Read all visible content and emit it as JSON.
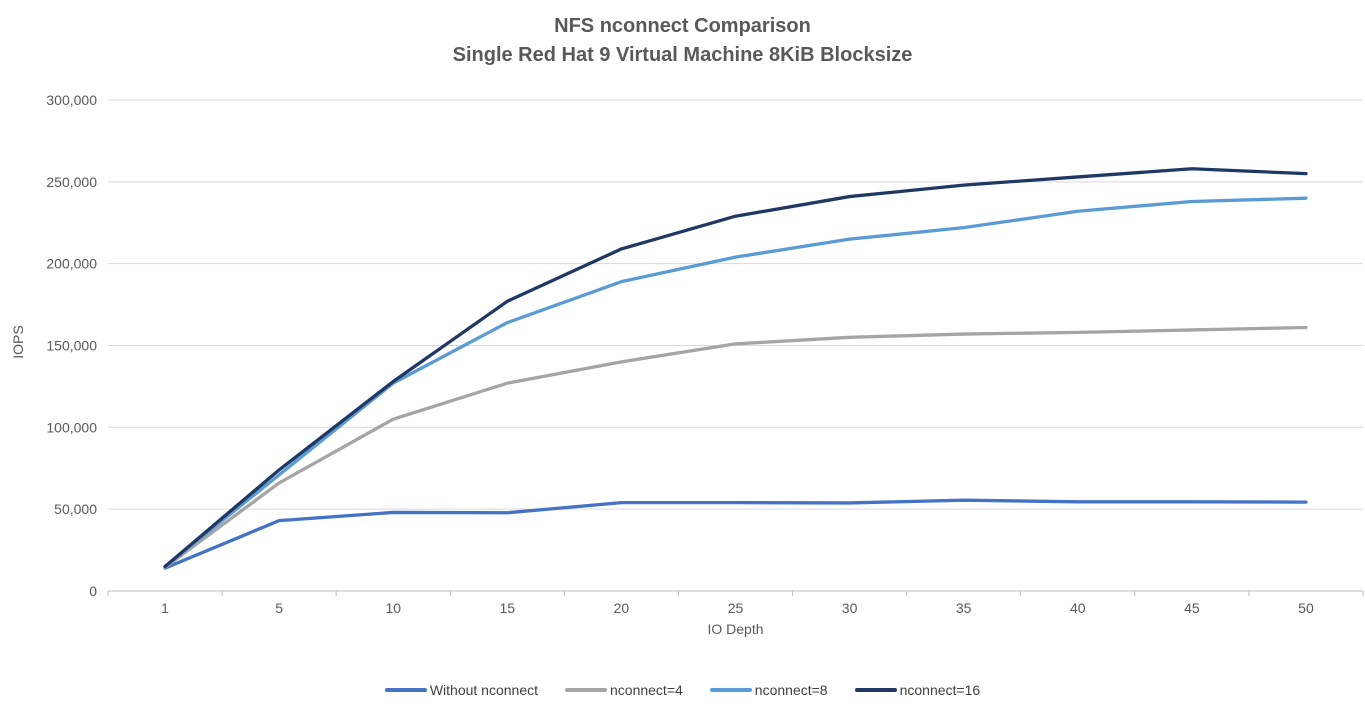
{
  "title": {
    "line1": "NFS nconnect Comparison",
    "line2": "Single Red Hat 9 Virtual Machine 8KiB Blocksize"
  },
  "axes": {
    "y_title": "IOPS",
    "x_title": "IO Depth",
    "y_tick_labels": [
      "0",
      "50,000",
      "100,000",
      "150,000",
      "200,000",
      "250,000",
      "300,000"
    ],
    "x_tick_labels": [
      "1",
      "5",
      "10",
      "15",
      "20",
      "25",
      "30",
      "35",
      "40",
      "45",
      "50"
    ]
  },
  "colors": {
    "title_text": "#595959",
    "axis_text": "#595959",
    "legend_text": "#404040",
    "gridline": "#d9d9d9",
    "axis_line": "#bfbfbf"
  },
  "chart_data": {
    "type": "line",
    "title": "NFS nconnect Comparison — Single Red Hat 9 Virtual Machine 8KiB Blocksize",
    "xlabel": "IO Depth",
    "ylabel": "IOPS",
    "x": [
      1,
      5,
      10,
      15,
      20,
      25,
      30,
      35,
      40,
      45,
      50
    ],
    "x_axis_type": "category",
    "ylim": [
      0,
      300000
    ],
    "y_tick_step": 50000,
    "grid": "horizontal",
    "legend_position": "bottom",
    "series": [
      {
        "name": "Without nconnect",
        "color": "#4472c4",
        "values": [
          14000,
          43000,
          48000,
          47800,
          54000,
          54000,
          53800,
          55500,
          54500,
          54500,
          54300
        ]
      },
      {
        "name": "nconnect=4",
        "color": "#a5a5a5",
        "values": [
          14500,
          66000,
          105000,
          127000,
          140000,
          151000,
          155000,
          157000,
          158000,
          159500,
          161000
        ]
      },
      {
        "name": "nconnect=8",
        "color": "#5b9bd5",
        "values": [
          15000,
          71000,
          127000,
          164000,
          189000,
          204000,
          215000,
          222000,
          232000,
          238000,
          240000
        ]
      },
      {
        "name": "nconnect=16",
        "color": "#1f3864",
        "values": [
          15000,
          74000,
          128000,
          177000,
          209000,
          229000,
          241000,
          248000,
          253000,
          258000,
          255000
        ]
      }
    ]
  }
}
